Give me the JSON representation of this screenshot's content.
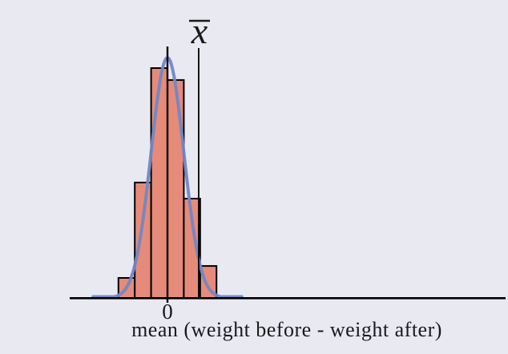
{
  "labels": {
    "xbar": "x",
    "zero": "0",
    "xaxis": "mean (weight before - weight after)"
  },
  "colors": {
    "background": "#e9e9f2",
    "bar_fill": "#e68b79",
    "bar_stroke": "#000000",
    "curve": "#7287c4",
    "axis": "#000000",
    "text": "#1a1a1a"
  },
  "chart_data": {
    "type": "bar",
    "subtype": "histogram with overlaid normal curve (sampling distribution sketch)",
    "title": "",
    "xlabel": "mean (weight before - weight after)",
    "ylabel": "",
    "x_tick_labels": [
      "0"
    ],
    "bin_edges": [
      -3,
      -2,
      -1,
      0,
      1,
      2,
      3
    ],
    "values": [
      0.087,
      0.502,
      1.0,
      0.948,
      0.432,
      0.139
    ],
    "values_scale": "relative frequency, tallest bar = 1",
    "curve": {
      "shape": "normal",
      "center": 0,
      "sigma": 1,
      "peak": 1.045,
      "draw_range": [
        -4.55,
        4.55
      ]
    },
    "xbar_marker": {
      "label": "x̄",
      "position": 1.91
    },
    "legend": null,
    "grid": false,
    "xlim_units": [
      -6,
      20.7
    ]
  }
}
